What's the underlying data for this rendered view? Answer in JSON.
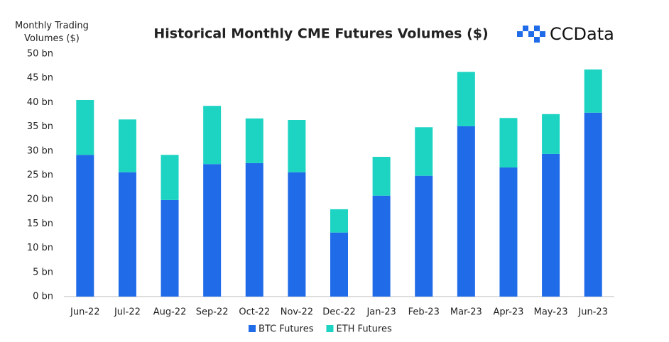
{
  "chart_data": {
    "type": "stacked_bar",
    "title": "Historical Monthly CME Futures Volumes ($)",
    "ylabel": "Monthly Trading Volumes ($)",
    "logo": "CCData",
    "categories": [
      "Jun-22",
      "Jul-22",
      "Aug-22",
      "Sep-22",
      "Oct-22",
      "Nov-22",
      "Dec-22",
      "Jan-23",
      "Feb-23",
      "Mar-23",
      "Apr-23",
      "May-23",
      "Jun-23"
    ],
    "series": [
      {
        "name": "BTC Futures",
        "color": "#1f6be8",
        "values": [
          29.2,
          25.6,
          19.9,
          27.3,
          27.5,
          25.6,
          13.2,
          20.8,
          24.9,
          35.1,
          26.6,
          29.4,
          37.9
        ]
      },
      {
        "name": "ETH Futures",
        "color": "#1dd3c2",
        "values": [
          11.3,
          10.9,
          9.3,
          12.0,
          9.2,
          10.8,
          4.8,
          8.0,
          10.0,
          11.2,
          10.2,
          8.2,
          8.9
        ]
      }
    ],
    "ylim": [
      0,
      50
    ],
    "yticks": [
      {
        "value": 0,
        "label": "0 bn"
      },
      {
        "value": 5,
        "label": "5 bn"
      },
      {
        "value": 10,
        "label": "10 bn"
      },
      {
        "value": 15,
        "label": "15 bn"
      },
      {
        "value": 20,
        "label": "20 bn"
      },
      {
        "value": 25,
        "label": "25 bn"
      },
      {
        "value": 30,
        "label": "30 bn"
      },
      {
        "value": 35,
        "label": "35 bn"
      },
      {
        "value": 40,
        "label": "40 bn"
      },
      {
        "value": 45,
        "label": "45 bn"
      },
      {
        "value": 50,
        "label": "50 bn"
      }
    ],
    "grid": false,
    "legend": "bottom"
  }
}
